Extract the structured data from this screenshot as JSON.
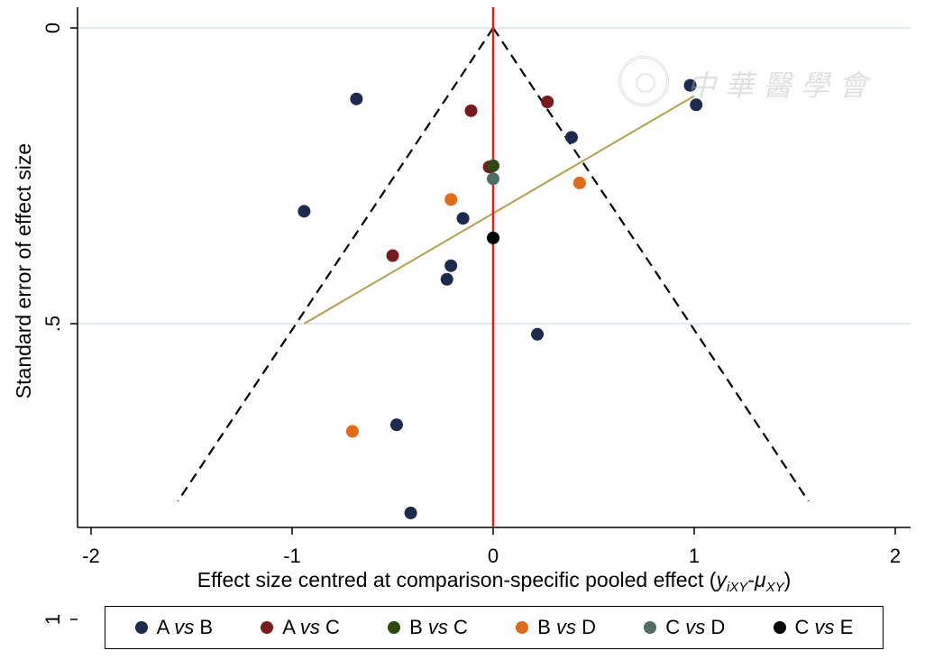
{
  "chart_data": {
    "type": "scatter",
    "title": "",
    "xlabel": "Effect size centred at comparison-specific pooled effect",
    "xlabel_math": {
      "open": "(",
      "y": "y",
      "y_sub": "iXY",
      "dash": "-",
      "mu": "μ",
      "mu_sub": "XY",
      "close": ")"
    },
    "ylabel": "Standard error of effect size",
    "xlim": [
      -2.05,
      2.05
    ],
    "ylim": [
      0.0,
      0.84
    ],
    "y_reversed": true,
    "x_ticks": [
      -2,
      -1,
      0,
      1,
      2
    ],
    "x_tick_labels": [
      "-2",
      "-1",
      "0",
      "1",
      "2"
    ],
    "y_ticks": [
      0,
      0.5,
      1
    ],
    "y_tick_labels": [
      "0",
      ".5",
      "1"
    ],
    "grid": {
      "horizontal": [
        0,
        0.5
      ],
      "vertical": false
    },
    "reference_line_x": 0,
    "funnel": {
      "apex_se": 0,
      "max_se": 0.8,
      "z": 1.96
    },
    "regression_line": {
      "x1": -0.94,
      "y1": 0.5,
      "x2": 1.0,
      "y2": 0.115
    },
    "legend_placement": "bottom",
    "series": [
      {
        "name": "A vs B",
        "color": "#1b2a4e",
        "points": [
          [
            -0.68,
            0.12
          ],
          [
            -0.94,
            0.31
          ],
          [
            0.98,
            0.097
          ],
          [
            1.01,
            0.13
          ],
          [
            0.39,
            0.185
          ],
          [
            -0.15,
            0.322
          ],
          [
            -0.21,
            0.402
          ],
          [
            -0.23,
            0.425
          ],
          [
            0.22,
            0.518
          ],
          [
            -0.48,
            0.671
          ],
          [
            -0.41,
            0.82
          ]
        ]
      },
      {
        "name": "A vs C",
        "color": "#7b1a1e",
        "points": [
          [
            -0.11,
            0.14
          ],
          [
            0.27,
            0.125
          ],
          [
            -0.02,
            0.235
          ],
          [
            -0.5,
            0.385
          ]
        ]
      },
      {
        "name": "B vs C",
        "color": "#2b4a12",
        "points": [
          [
            0.0,
            0.233
          ]
        ]
      },
      {
        "name": "B vs D",
        "color": "#e06a1b",
        "points": [
          [
            -0.21,
            0.29
          ],
          [
            0.43,
            0.262
          ],
          [
            -0.7,
            0.682
          ]
        ]
      },
      {
        "name": "C vs D",
        "color": "#4f6e68",
        "points": [
          [
            0.0,
            0.255
          ]
        ]
      },
      {
        "name": "C vs E",
        "color": "#000000",
        "points": [
          [
            0.0,
            0.355
          ]
        ]
      }
    ],
    "legend": [
      {
        "pre": "A ",
        "vs": "vs",
        "post": " B",
        "color": "#1b2a4e"
      },
      {
        "pre": "A ",
        "vs": "vs",
        "post": " C",
        "color": "#7b1a1e"
      },
      {
        "pre": "B ",
        "vs": "vs",
        "post": " C",
        "color": "#2b4a12"
      },
      {
        "pre": "B ",
        "vs": "vs",
        "post": " D",
        "color": "#e06a1b"
      },
      {
        "pre": "C ",
        "vs": "vs",
        "post": " D",
        "color": "#4f6e68"
      },
      {
        "pre": "C ",
        "vs": "vs",
        "post": " E",
        "color": "#000000"
      }
    ]
  },
  "colors": {
    "reference_line": "#e8191c",
    "regression_line": "#b8a75a",
    "grid": "#d9e3e8",
    "funnel": "#000000"
  },
  "watermark": {
    "text": "中華醫學會",
    "icon": "seal-logo"
  }
}
